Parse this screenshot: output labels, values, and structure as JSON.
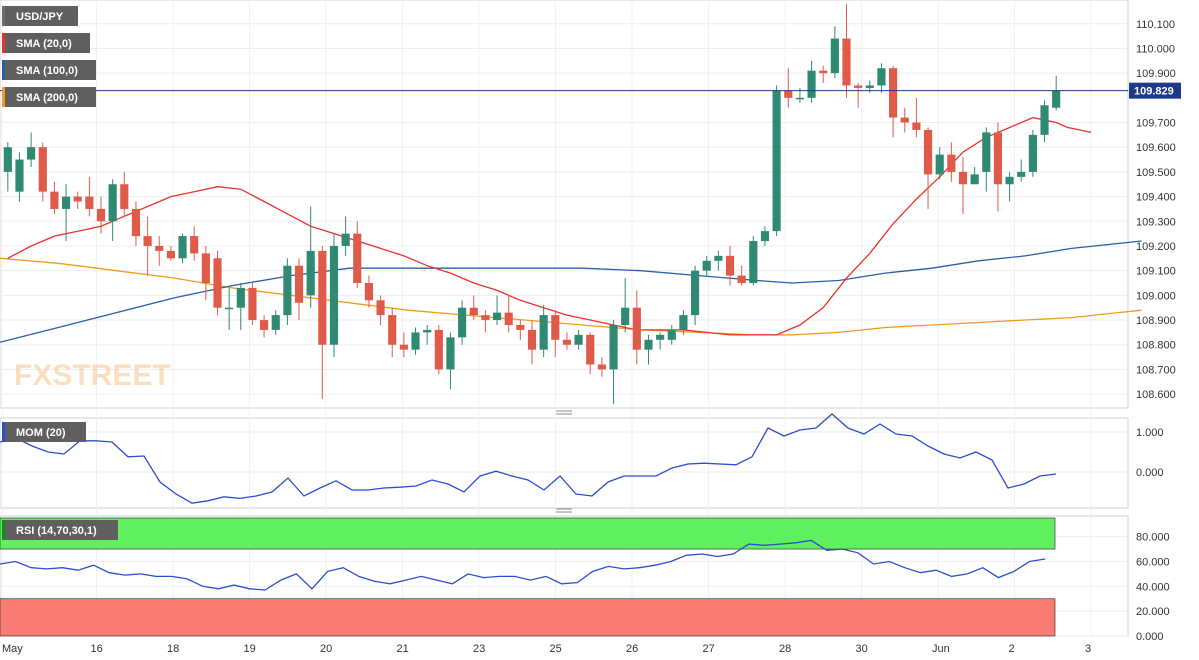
{
  "colors": {
    "up": "#2e8a73",
    "down": "#e05a4a",
    "sma20": "#e8322a",
    "sma100": "#2a5ea8",
    "sma200": "#f29a22",
    "mom": "#2a4ed0",
    "rsi": "#2a4ed0",
    "rsi_over": "#5ef05e",
    "rsi_under": "#fa7a74",
    "price_line": "#1e3a8a"
  },
  "chart_data": [
    {
      "type": "candlestick",
      "title": "USD/JPY",
      "indicators": [
        "SMA (20,0)",
        "SMA (100,0)",
        "SMA (200,0)"
      ],
      "current_price_label": "109.829",
      "watermark": "FXSTREET",
      "ylim": [
        108.56,
        110.18
      ],
      "y_ticks": [
        "110.100",
        "110.000",
        "109.900",
        "109.700",
        "109.600",
        "109.500",
        "109.400",
        "109.300",
        "109.200",
        "109.100",
        "109.000",
        "108.900",
        "108.800",
        "108.700",
        "108.600"
      ],
      "x_labels": [
        "May",
        "16",
        "18",
        "19",
        "20",
        "21",
        "23",
        "25",
        "26",
        "27",
        "28",
        "30",
        "Jun",
        "2",
        "3"
      ],
      "candles": [
        [
          109.5,
          109.6,
          109.42,
          109.62
        ],
        [
          109.42,
          109.55,
          109.38,
          109.58
        ],
        [
          109.55,
          109.6,
          109.52,
          109.66
        ],
        [
          109.6,
          109.42,
          109.38,
          109.62
        ],
        [
          109.42,
          109.35,
          109.33,
          109.46
        ],
        [
          109.35,
          109.4,
          109.22,
          109.45
        ],
        [
          109.4,
          109.38,
          109.35,
          109.42
        ],
        [
          109.4,
          109.35,
          109.32,
          109.48
        ],
        [
          109.35,
          109.3,
          109.25,
          109.4
        ],
        [
          109.3,
          109.45,
          109.22,
          109.47
        ],
        [
          109.45,
          109.35,
          109.32,
          109.5
        ],
        [
          109.35,
          109.24,
          109.2,
          109.38
        ],
        [
          109.24,
          109.2,
          109.08,
          109.32
        ],
        [
          109.2,
          109.18,
          109.12,
          109.24
        ],
        [
          109.18,
          109.15,
          109.14,
          109.2
        ],
        [
          109.15,
          109.24,
          109.13,
          109.25
        ],
        [
          109.24,
          109.17,
          109.14,
          109.28
        ],
        [
          109.17,
          109.05,
          108.98,
          109.2
        ],
        [
          109.15,
          108.95,
          108.92,
          109.18
        ],
        [
          108.95,
          108.95,
          108.86,
          109.03
        ],
        [
          108.95,
          109.03,
          108.86,
          109.05
        ],
        [
          109.03,
          108.9,
          108.88,
          109.05
        ],
        [
          108.9,
          108.86,
          108.83,
          108.92
        ],
        [
          108.86,
          108.92,
          108.84,
          108.94
        ],
        [
          108.92,
          109.12,
          108.88,
          109.15
        ],
        [
          109.12,
          108.97,
          108.9,
          109.15
        ],
        [
          109.0,
          109.18,
          108.95,
          109.36
        ],
        [
          109.18,
          108.8,
          108.58,
          109.2
        ],
        [
          108.8,
          109.2,
          108.75,
          109.25
        ],
        [
          109.2,
          109.25,
          109.16,
          109.32
        ],
        [
          109.25,
          109.05,
          109.03,
          109.3
        ],
        [
          109.05,
          108.98,
          108.95,
          109.08
        ],
        [
          108.98,
          108.92,
          108.88,
          109.0
        ],
        [
          108.92,
          108.8,
          108.75,
          108.95
        ],
        [
          108.8,
          108.78,
          108.75,
          108.85
        ],
        [
          108.78,
          108.85,
          108.76,
          108.87
        ],
        [
          108.85,
          108.86,
          108.8,
          108.88
        ],
        [
          108.86,
          108.7,
          108.68,
          108.88
        ],
        [
          108.7,
          108.83,
          108.62,
          108.85
        ],
        [
          108.83,
          108.95,
          108.8,
          108.98
        ],
        [
          108.95,
          108.92,
          108.9,
          109.0
        ],
        [
          108.92,
          108.9,
          108.85,
          108.94
        ],
        [
          108.9,
          108.93,
          108.88,
          109.0
        ],
        [
          108.93,
          108.88,
          108.85,
          109.0
        ],
        [
          108.88,
          108.86,
          108.82,
          108.9
        ],
        [
          108.86,
          108.78,
          108.72,
          108.9
        ],
        [
          108.78,
          108.92,
          108.75,
          108.96
        ],
        [
          108.92,
          108.82,
          108.75,
          108.94
        ],
        [
          108.82,
          108.8,
          108.78,
          108.85
        ],
        [
          108.8,
          108.84,
          108.78,
          108.86
        ],
        [
          108.84,
          108.72,
          108.68,
          108.85
        ],
        [
          108.72,
          108.7,
          108.67,
          108.75
        ],
        [
          108.7,
          108.88,
          108.56,
          108.9
        ],
        [
          108.88,
          108.95,
          108.85,
          109.07
        ],
        [
          108.95,
          108.78,
          108.72,
          109.02
        ],
        [
          108.78,
          108.82,
          108.72,
          108.84
        ],
        [
          108.82,
          108.84,
          108.78,
          108.85
        ],
        [
          108.82,
          108.86,
          108.8,
          108.88
        ],
        [
          108.86,
          108.92,
          108.84,
          108.94
        ],
        [
          108.92,
          109.1,
          108.88,
          109.12
        ],
        [
          109.1,
          109.14,
          109.08,
          109.16
        ],
        [
          109.14,
          109.16,
          109.1,
          109.18
        ],
        [
          109.16,
          109.08,
          109.04,
          109.2
        ],
        [
          109.08,
          109.05,
          109.04,
          109.12
        ],
        [
          109.05,
          109.22,
          109.04,
          109.24
        ],
        [
          109.22,
          109.26,
          109.2,
          109.28
        ],
        [
          109.26,
          109.83,
          109.24,
          109.85
        ],
        [
          109.83,
          109.8,
          109.76,
          109.92
        ],
        [
          109.8,
          109.8,
          109.78,
          109.84
        ],
        [
          109.8,
          109.91,
          109.78,
          109.95
        ],
        [
          109.91,
          109.9,
          109.86,
          109.93
        ],
        [
          109.9,
          110.04,
          109.88,
          110.09
        ],
        [
          110.04,
          109.85,
          109.8,
          110.18
        ],
        [
          109.85,
          109.84,
          109.76,
          109.86
        ],
        [
          109.84,
          109.85,
          109.82,
          109.87
        ],
        [
          109.85,
          109.92,
          109.82,
          109.94
        ],
        [
          109.92,
          109.72,
          109.64,
          109.93
        ],
        [
          109.72,
          109.7,
          109.66,
          109.76
        ],
        [
          109.7,
          109.67,
          109.64,
          109.8
        ],
        [
          109.67,
          109.49,
          109.35,
          109.68
        ],
        [
          109.49,
          109.57,
          109.47,
          109.6
        ],
        [
          109.57,
          109.5,
          109.46,
          109.62
        ],
        [
          109.5,
          109.45,
          109.33,
          109.56
        ],
        [
          109.45,
          109.49,
          109.45,
          109.52
        ],
        [
          109.5,
          109.66,
          109.42,
          109.68
        ],
        [
          109.66,
          109.45,
          109.34,
          109.7
        ],
        [
          109.45,
          109.48,
          109.38,
          109.5
        ],
        [
          109.48,
          109.5,
          109.46,
          109.55
        ],
        [
          109.5,
          109.65,
          109.48,
          109.67
        ],
        [
          109.65,
          109.77,
          109.62,
          109.79
        ],
        [
          109.76,
          109.83,
          109.75,
          109.89
        ]
      ],
      "sma20": [
        109.15,
        109.2,
        109.24,
        109.26,
        109.28,
        109.32,
        109.36,
        109.4,
        109.42,
        109.44,
        109.43,
        109.38,
        109.33,
        109.28,
        109.25,
        109.22,
        109.19,
        109.16,
        109.12,
        109.09,
        109.05,
        109.02,
        108.98,
        108.95,
        108.92,
        108.9,
        108.88,
        108.86,
        108.86,
        108.86,
        108.85,
        108.84,
        108.84,
        108.84,
        108.88,
        108.95,
        109.07,
        109.17,
        109.29,
        109.39,
        109.48,
        109.58,
        109.64,
        109.68,
        109.72,
        109.7,
        109.68,
        109.67,
        109.66
      ],
      "sma20_x": [
        0,
        2,
        4,
        6,
        8,
        10,
        12,
        14,
        16,
        18,
        20,
        22,
        24,
        26,
        28,
        30,
        32,
        34,
        36,
        38,
        40,
        42,
        44,
        46,
        48,
        50,
        52,
        54,
        56,
        58,
        60,
        62,
        64,
        66,
        68,
        70,
        72,
        74,
        76,
        78,
        80,
        82,
        84,
        86,
        88,
        90,
        91,
        92,
        93
      ],
      "sma100": [
        [
          0,
          108.81
        ],
        [
          5,
          108.87
        ],
        [
          10,
          108.93
        ],
        [
          15,
          108.99
        ],
        [
          20,
          109.04
        ],
        [
          25,
          109.08
        ],
        [
          30,
          109.11
        ],
        [
          35,
          109.11
        ],
        [
          40,
          109.11
        ],
        [
          45,
          109.11
        ],
        [
          50,
          109.11
        ],
        [
          55,
          109.1
        ],
        [
          60,
          109.08
        ],
        [
          65,
          109.06
        ],
        [
          68,
          109.05
        ],
        [
          72,
          109.06
        ],
        [
          76,
          109.09
        ],
        [
          80,
          109.11
        ],
        [
          84,
          109.14
        ],
        [
          88,
          109.16
        ],
        [
          92,
          109.19
        ],
        [
          96,
          109.21
        ],
        [
          98,
          109.22
        ]
      ],
      "sma200": [
        [
          0,
          109.15
        ],
        [
          5,
          109.13
        ],
        [
          10,
          109.1
        ],
        [
          15,
          109.07
        ],
        [
          20,
          109.03
        ],
        [
          25,
          109.0
        ],
        [
          30,
          108.97
        ],
        [
          35,
          108.94
        ],
        [
          40,
          108.92
        ],
        [
          45,
          108.9
        ],
        [
          50,
          108.88
        ],
        [
          55,
          108.86
        ],
        [
          60,
          108.85
        ],
        [
          65,
          108.84
        ],
        [
          68,
          108.84
        ],
        [
          72,
          108.85
        ],
        [
          76,
          108.87
        ],
        [
          80,
          108.88
        ],
        [
          84,
          108.89
        ],
        [
          88,
          108.9
        ],
        [
          92,
          108.91
        ],
        [
          96,
          108.93
        ],
        [
          98,
          108.94
        ]
      ]
    },
    {
      "type": "line",
      "title": "MOM (20)",
      "y_ticks": [
        "1.000",
        "0.000"
      ],
      "ylim": [
        -0.85,
        1.3
      ],
      "values": [
        0.75,
        0.85,
        0.65,
        0.5,
        0.45,
        0.78,
        0.78,
        0.75,
        0.38,
        0.4,
        -0.25,
        -0.55,
        -0.78,
        -0.72,
        -0.62,
        -0.66,
        -0.6,
        -0.5,
        -0.15,
        -0.6,
        -0.4,
        -0.22,
        -0.45,
        -0.45,
        -0.4,
        -0.38,
        -0.35,
        -0.2,
        -0.3,
        -0.5,
        -0.1,
        0.02,
        -0.1,
        -0.2,
        -0.45,
        -0.1,
        -0.55,
        -0.6,
        -0.25,
        -0.1,
        -0.1,
        -0.1,
        0.1,
        0.2,
        0.22,
        0.2,
        0.18,
        0.38,
        1.1,
        0.9,
        1.05,
        1.1,
        1.45,
        1.1,
        0.95,
        1.2,
        0.95,
        0.9,
        0.65,
        0.45,
        0.35,
        0.5,
        0.3,
        -0.4,
        -0.3,
        -0.1,
        -0.05
      ],
      "x_step": 2
    },
    {
      "type": "line",
      "title": "RSI (14,70,30,1)",
      "y_ticks": [
        "80.000",
        "60.000",
        "40.000",
        "20.000",
        "0.000"
      ],
      "ylim": [
        0,
        95
      ],
      "overbought": 70,
      "oversold": 30,
      "values": [
        58,
        60,
        55,
        54,
        55,
        53,
        57,
        51,
        49,
        50,
        48,
        48,
        46,
        40,
        38,
        41,
        38,
        37,
        45,
        50,
        38,
        52,
        55,
        48,
        44,
        42,
        45,
        48,
        45,
        42,
        50,
        47,
        48,
        48,
        45,
        48,
        42,
        43,
        52,
        56,
        54,
        55,
        57,
        60,
        65,
        66,
        64,
        66,
        74,
        73,
        74,
        75,
        77,
        69,
        70,
        67,
        58,
        60,
        55,
        51,
        53,
        48,
        50,
        55,
        47,
        52,
        60,
        62
      ],
      "x_step": 1.5
    }
  ]
}
